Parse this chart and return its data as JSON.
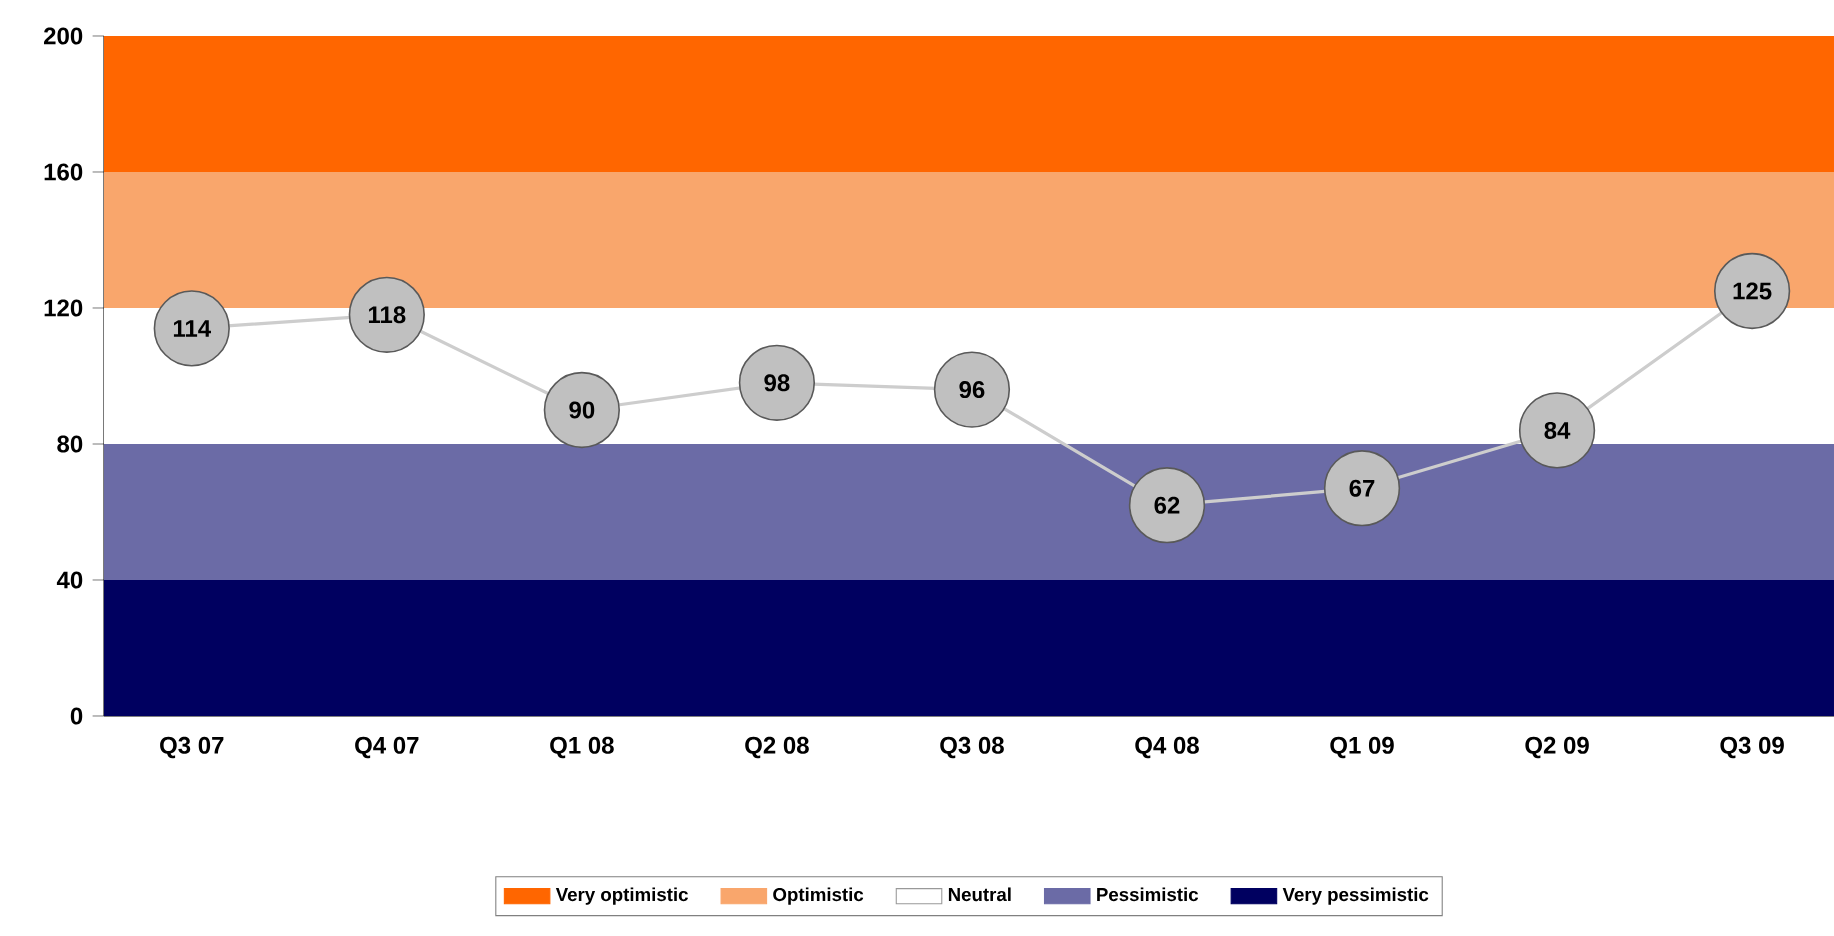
{
  "chart_data": {
    "type": "line",
    "categories": [
      "Q3 07",
      "Q4 07",
      "Q1 08",
      "Q2 08",
      "Q3 08",
      "Q4 08",
      "Q1 09",
      "Q2 09",
      "Q3 09"
    ],
    "series": [
      {
        "color": "#c0c0c0",
        "values": [
          114,
          118,
          90,
          98,
          96,
          62,
          67,
          84,
          125
        ]
      }
    ],
    "ylim": [
      0,
      200
    ],
    "yticks": [
      0,
      40,
      80,
      120,
      160,
      200
    ],
    "marker": "circle",
    "data_labels": true,
    "grid": false,
    "legend": "bottom",
    "bands": [
      {
        "axis": "y",
        "from": 160,
        "to": 200,
        "label": "Very optimistic",
        "color": "#ff6600"
      },
      {
        "axis": "y",
        "from": 120,
        "to": 160,
        "label": "Optimistic",
        "color": "#f9a66c"
      },
      {
        "axis": "y",
        "from": 80,
        "to": 120,
        "label": "Neutral",
        "color": "#ffffff"
      },
      {
        "axis": "y",
        "from": 40,
        "to": 80,
        "label": "Pessimistic",
        "color": "#6b6ba6"
      },
      {
        "axis": "y",
        "from": 0,
        "to": 40,
        "label": "Very pessimistic",
        "color": "#000060"
      }
    ]
  }
}
